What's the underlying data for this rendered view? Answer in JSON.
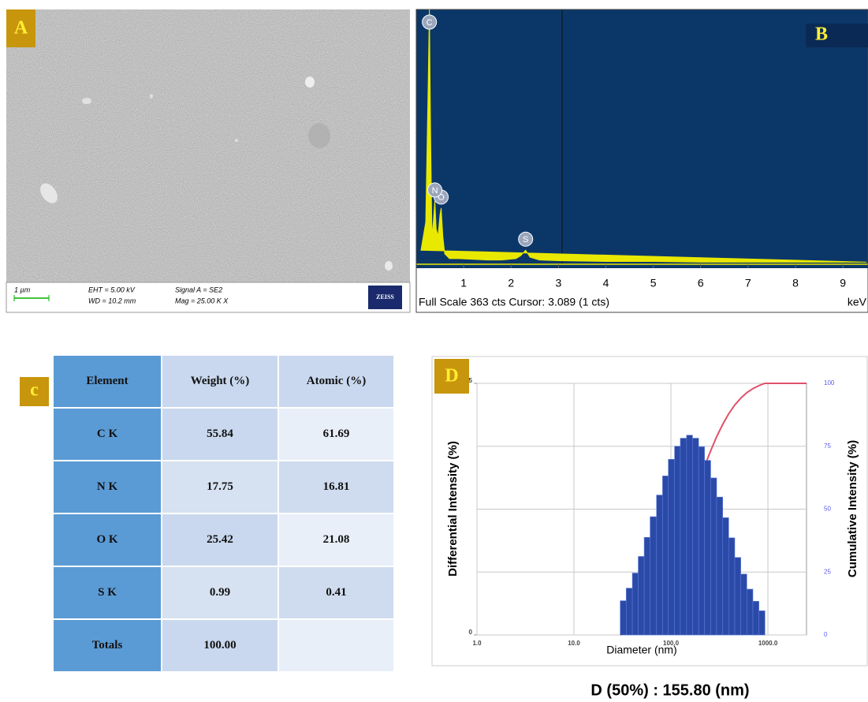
{
  "panel_labels": {
    "a": "A",
    "b": "B",
    "c": "c",
    "d": "D"
  },
  "sem": {
    "scale_bar": "1 µm",
    "eht": "EHT = 5.00 kV",
    "wd": "WD = 10.2 mm",
    "signal": "Signal A = SE2",
    "mag": "Mag = 25.00 K X",
    "brand": "ZEISS"
  },
  "table": {
    "header": [
      "Element",
      "Weight  (%)",
      "Atomic (%)"
    ],
    "rows": [
      [
        "C K",
        "55.84",
        "61.69"
      ],
      [
        "N K",
        "17.75",
        "16.81"
      ],
      [
        "O K",
        "25.42",
        "21.08"
      ],
      [
        "S K",
        "0.99",
        "0.41"
      ],
      [
        "Totals",
        "100.00"
      ]
    ]
  },
  "chart_data": [
    {
      "type": "area",
      "x_label": "keV",
      "footer": "Full Scale 363 cts Cursor: 3.089 (1 cts)",
      "x": [
        0.1,
        0.2,
        0.25,
        0.277,
        0.3,
        0.33,
        0.36,
        0.392,
        0.42,
        0.46,
        0.5,
        0.525,
        0.56,
        0.6,
        0.7,
        0.9,
        1.2,
        1.5,
        1.8,
        2.1,
        2.2,
        2.307,
        2.4,
        2.6,
        3,
        4,
        5,
        6,
        7,
        8,
        9,
        9.5
      ],
      "values": [
        20,
        60,
        250,
        363,
        200,
        40,
        60,
        90,
        50,
        40,
        70,
        80,
        40,
        15,
        8,
        8,
        7,
        6,
        6,
        8,
        12,
        20,
        10,
        6,
        5,
        4,
        4,
        3,
        3,
        3,
        3,
        3
      ],
      "color": "#e8e800",
      "xlim": [
        0,
        9.53
      ],
      "xticks": [
        1,
        2,
        3,
        4,
        5,
        6,
        7,
        8,
        9
      ],
      "ylim": [
        0,
        363
      ],
      "annotations": [
        {
          "text": "C",
          "x": 0.277,
          "y": 363
        },
        {
          "text": "O",
          "x": 0.525,
          "y": 80
        },
        {
          "text": "N",
          "x": 0.392,
          "y": 90
        },
        {
          "text": "S",
          "x": 2.307,
          "y": 20
        }
      ]
    },
    {
      "type": "histogram",
      "x_label": "Diameter (nm)",
      "y_label": "Differential Intensity  (%)",
      "y2_label": "Cumulative Intensity  (%)",
      "caption": "D (50%) : 155.80 (nm)",
      "bins": [
        30,
        34.6,
        40,
        46,
        53,
        61,
        71,
        82,
        94,
        109,
        125,
        145,
        167,
        193,
        222,
        257,
        296,
        342,
        394,
        455,
        525,
        606,
        700,
        808,
        932
      ],
      "values": [
        0.68,
        0.93,
        1.23,
        1.56,
        1.94,
        2.35,
        2.78,
        3.16,
        3.49,
        3.75,
        3.91,
        3.97,
        3.91,
        3.74,
        3.47,
        3.12,
        2.74,
        2.33,
        1.93,
        1.54,
        1.21,
        0.91,
        0.67,
        0.48
      ],
      "color": "#2b4aa8",
      "xscale": "log",
      "xlim": [
        1,
        2500
      ],
      "xticks": [
        {
          "value": 1,
          "label": "1.0"
        },
        {
          "value": 10,
          "label": "10.0"
        },
        {
          "value": 100,
          "label": "100.0"
        },
        {
          "value": 1000,
          "label": "1000.0"
        }
      ],
      "ylim": [
        0,
        5
      ],
      "yticks": [
        0,
        5
      ],
      "y2lim": [
        0,
        100
      ],
      "y2ticks": [
        0,
        25,
        50,
        75,
        100
      ],
      "grid": true,
      "cumulative": {
        "axis": "y2",
        "color": "#e0506a",
        "x": [
          30,
          34.6,
          40,
          46,
          53,
          61,
          71,
          82,
          94,
          109,
          125,
          145,
          167,
          193,
          222,
          257,
          296,
          342,
          394,
          455,
          525,
          606,
          700,
          808,
          932,
          2500
        ],
        "values": [
          0,
          1.2,
          2.9,
          5.1,
          7.9,
          11.4,
          15.6,
          20.6,
          26.2,
          32.5,
          39.2,
          46.2,
          53.3,
          60.3,
          67.0,
          73.2,
          78.8,
          83.7,
          87.9,
          91.4,
          94.1,
          96.3,
          97.9,
          99.1,
          100,
          100
        ]
      }
    }
  ]
}
